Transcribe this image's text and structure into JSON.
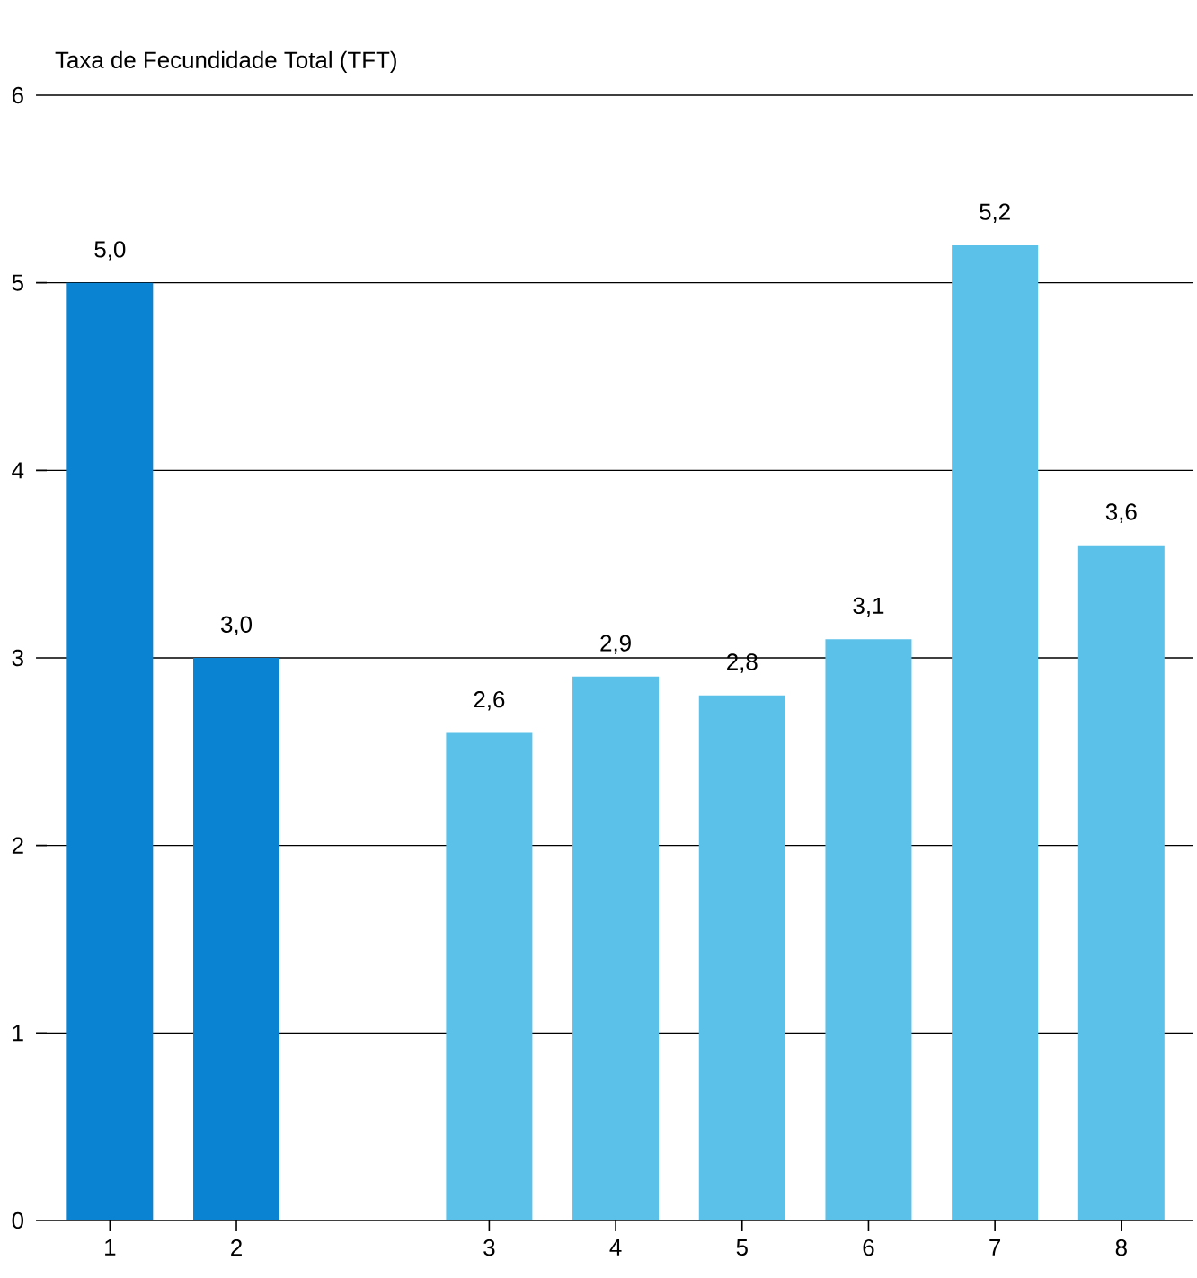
{
  "chart_data": {
    "type": "bar",
    "title": "Taxa de Fecundidade Total (TFT)",
    "categories": [
      "1",
      "2",
      null,
      "3",
      "4",
      "5",
      "6",
      "7",
      "8"
    ],
    "values": [
      5.0,
      3.0,
      null,
      2.6,
      2.9,
      2.8,
      3.1,
      5.2,
      3.6
    ],
    "value_labels": [
      "5,0",
      "3,0",
      null,
      "2,6",
      "2,9",
      "2,8",
      "3,1",
      "5,2",
      "3,6"
    ],
    "colors": [
      "#0a83d3",
      "#0a83d3",
      null,
      "#5bc1e8",
      "#5bc1e8",
      "#5bc1e8",
      "#5bc1e8",
      "#5bc1e8",
      "#5bc1e8"
    ],
    "ylim": [
      0,
      6
    ],
    "yticks": [
      0,
      1,
      2,
      3,
      4,
      5,
      6
    ],
    "grid": "y"
  }
}
